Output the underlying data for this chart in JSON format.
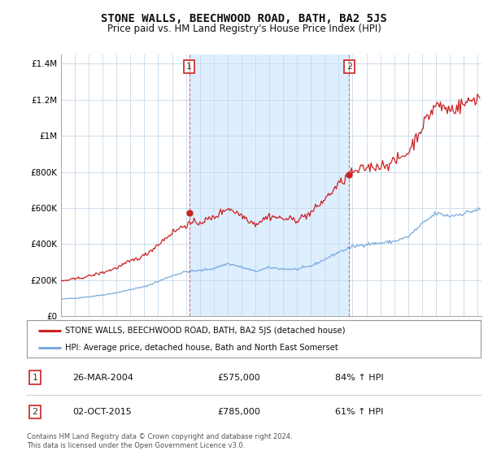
{
  "title": "STONE WALLS, BEECHWOOD ROAD, BATH, BA2 5JS",
  "subtitle": "Price paid vs. HM Land Registry's House Price Index (HPI)",
  "title_fontsize": 10,
  "subtitle_fontsize": 8.5,
  "background_color": "#ffffff",
  "plot_bg_color": "#ffffff",
  "grid_color": "#c8d8e8",
  "shade_color": "#ddeeff",
  "ylim": [
    0,
    1450000
  ],
  "yticks": [
    0,
    200000,
    400000,
    600000,
    800000,
    1000000,
    1200000,
    1400000
  ],
  "ytick_labels": [
    "£0",
    "£200K",
    "£400K",
    "£600K",
    "£800K",
    "£1M",
    "£1.2M",
    "£1.4M"
  ],
  "sale1_date": "26-MAR-2004",
  "sale1_price": 575000,
  "sale1_pct": "84%",
  "sale2_date": "02-OCT-2015",
  "sale2_price": 785000,
  "sale2_pct": "61%",
  "sale1_x": 2004.23,
  "sale2_x": 2015.75,
  "legend_label_red": "STONE WALLS, BEECHWOOD ROAD, BATH, BA2 5JS (detached house)",
  "legend_label_blue": "HPI: Average price, detached house, Bath and North East Somerset",
  "footer": "Contains HM Land Registry data © Crown copyright and database right 2024.\nThis data is licensed under the Open Government Licence v3.0.",
  "red_color": "#cc2222",
  "blue_color": "#7aaadd",
  "marker_red": "#cc2222",
  "xlim_left": 1995.0,
  "xlim_right": 2025.3
}
